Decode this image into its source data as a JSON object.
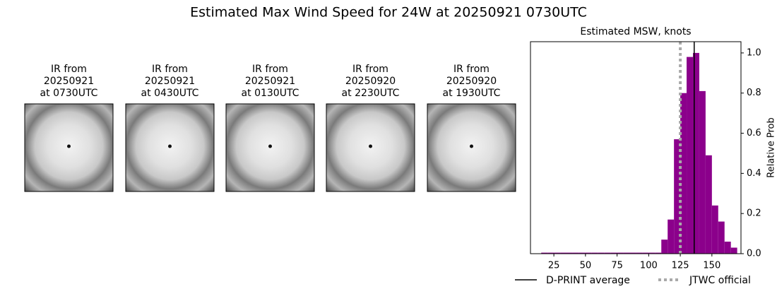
{
  "chart_data": {
    "type": "histogram",
    "title": "Estimated Max Wind Speed for 24W at 20250921 0730UTC",
    "subtitle": "Estimated MSW, knots",
    "y_label": "Relative Prob",
    "color": "#8b008b",
    "bins": [
      15,
      20,
      25,
      30,
      35,
      40,
      45,
      50,
      55,
      60,
      65,
      70,
      75,
      80,
      85,
      90,
      95,
      100,
      105,
      110,
      115,
      120,
      125,
      130,
      135,
      140,
      145,
      150,
      155,
      160,
      165,
      170
    ],
    "values": [
      0.005,
      0.005,
      0.005,
      0.005,
      0.005,
      0.005,
      0.005,
      0.005,
      0.005,
      0.005,
      0.005,
      0.005,
      0.005,
      0.005,
      0.005,
      0.005,
      0.005,
      0.005,
      0.005,
      0.07,
      0.17,
      0.57,
      0.8,
      0.98,
      1.0,
      0.81,
      0.49,
      0.24,
      0.16,
      0.06,
      0.03
    ],
    "xlim": [
      6.5,
      173
    ],
    "xticks": [
      25,
      50,
      75,
      100,
      125,
      150
    ],
    "ylim": [
      0,
      1.056
    ],
    "yticks": [
      {
        "value": 0,
        "label": "0.0"
      },
      {
        "value": 0.2,
        "label": "0.2"
      },
      {
        "value": 0.4,
        "label": "0.4"
      },
      {
        "value": 0.6,
        "label": "0.6"
      },
      {
        "value": 0.8,
        "label": "0.8"
      },
      {
        "value": 1.0,
        "label": "1.0"
      }
    ],
    "reference_lines": [
      {
        "name": "D-PRINT average",
        "value": 136,
        "color": "#000000",
        "style": "solid"
      },
      {
        "name": "JTWC official",
        "value": 125,
        "color": "#a9a9a9",
        "style": "dotted"
      }
    ],
    "images": [
      {
        "lines": [
          "IR from",
          "20250921",
          "at 0730UTC"
        ]
      },
      {
        "lines": [
          "IR from",
          "20250921",
          "at 0430UTC"
        ]
      },
      {
        "lines": [
          "IR from",
          "20250921",
          "at 0130UTC"
        ]
      },
      {
        "lines": [
          "IR from",
          "20250920",
          "at 2230UTC"
        ]
      },
      {
        "lines": [
          "IR from",
          "20250920",
          "at 1930UTC"
        ]
      }
    ]
  }
}
